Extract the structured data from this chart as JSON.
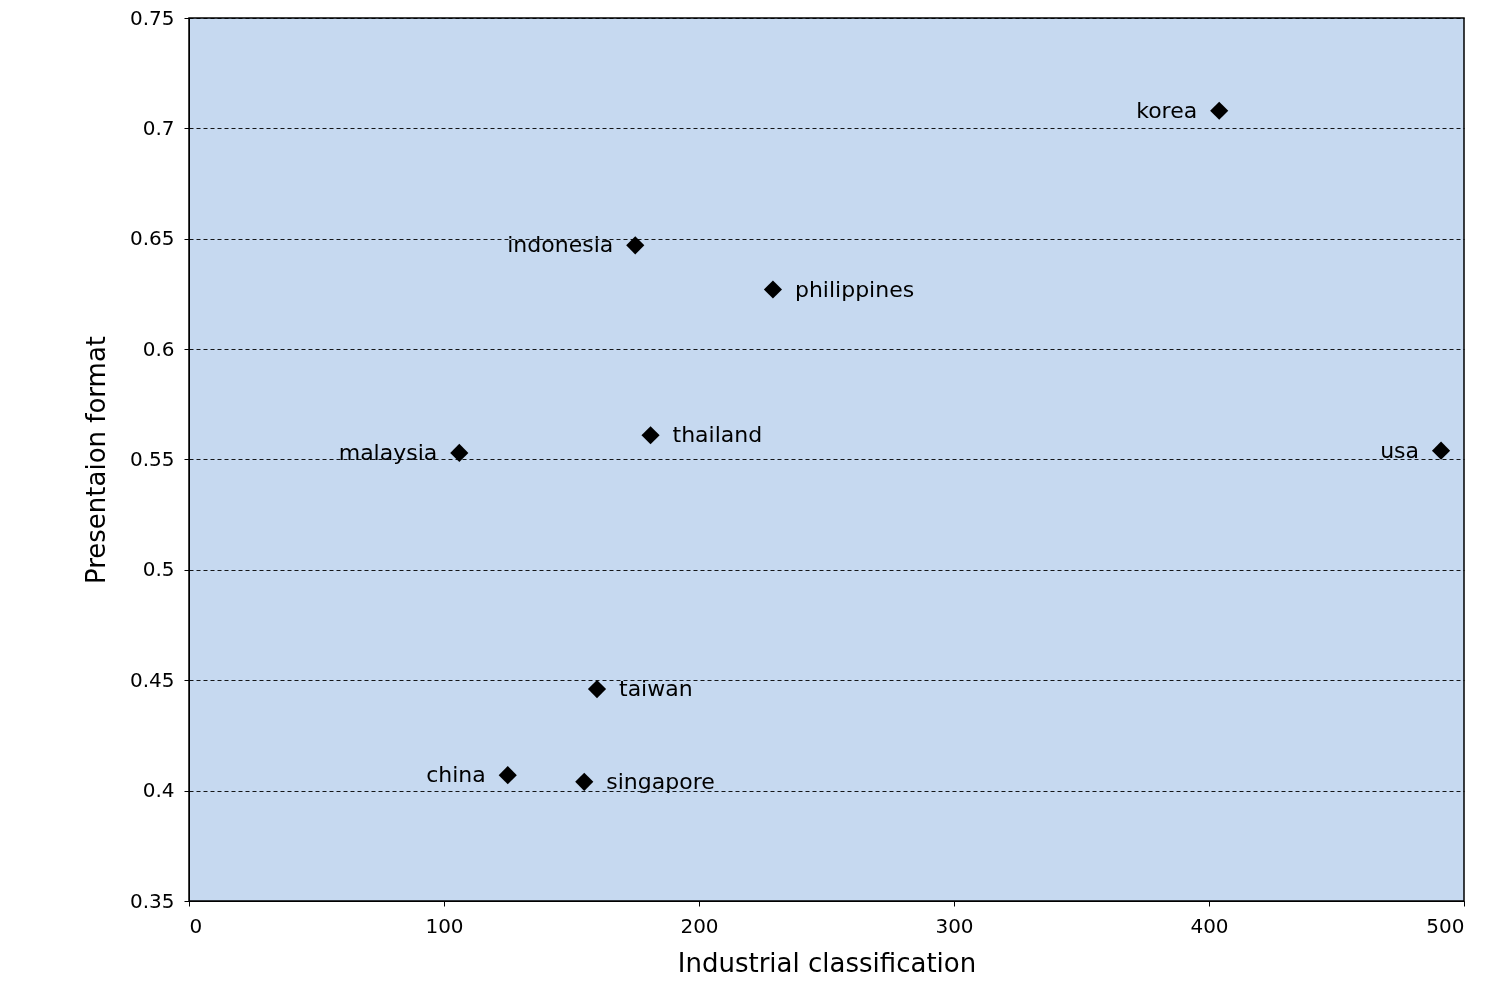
{
  "chart_data": {
    "type": "scatter",
    "xlabel": "Industrial classification",
    "ylabel": "Presentaion format",
    "xlim": [
      0,
      500
    ],
    "xticks": [
      0,
      100,
      200,
      300,
      400,
      500
    ],
    "ylim": [
      0.35,
      0.75
    ],
    "yticks": [
      0.35,
      0.4,
      0.45,
      0.5,
      0.55,
      0.6,
      0.65,
      0.7,
      0.75
    ],
    "grid": "y",
    "marker": "diamond",
    "line_style": "dashed",
    "series": [
      {
        "color": "#000000",
        "x": [
          404,
          175,
          229,
          181,
          106,
          491,
          160,
          125,
          155
        ],
        "values": [
          0.708,
          0.647,
          0.627,
          0.561,
          0.553,
          0.554,
          0.446,
          0.407,
          0.404
        ]
      }
    ],
    "annotations": [
      {
        "text": "korea",
        "x": 404,
        "y": 0.708
      },
      {
        "text": "indonesia",
        "x": 175,
        "y": 0.647
      },
      {
        "text": "philippines",
        "x": 229,
        "y": 0.627
      },
      {
        "text": "thailand",
        "x": 181,
        "y": 0.561
      },
      {
        "text": "malaysia",
        "x": 106,
        "y": 0.553
      },
      {
        "text": "usa",
        "x": 491,
        "y": 0.554
      },
      {
        "text": "taiwan",
        "x": 160,
        "y": 0.446
      },
      {
        "text": "china",
        "x": 125,
        "y": 0.407
      },
      {
        "text": "singapore",
        "x": 155,
        "y": 0.404
      }
    ]
  }
}
